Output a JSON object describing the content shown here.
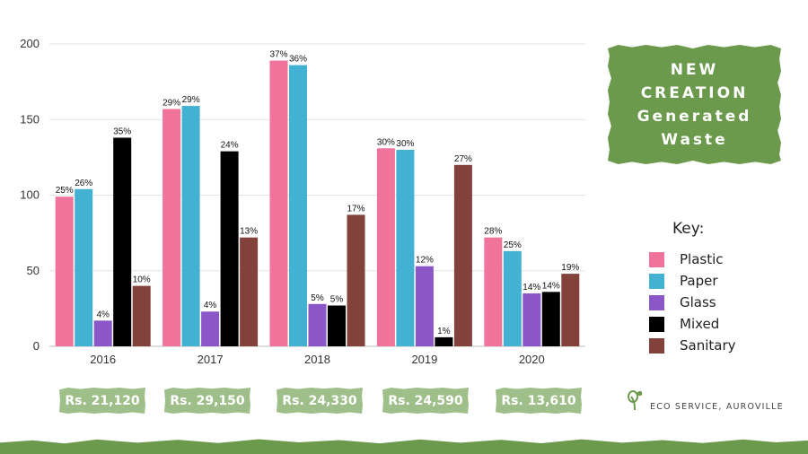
{
  "chart_data": {
    "type": "bar",
    "categories": [
      "2016",
      "2017",
      "2018",
      "2019",
      "2020"
    ],
    "ylim": [
      0,
      200
    ],
    "yticks": [
      0,
      50,
      100,
      150,
      200
    ],
    "grid": true,
    "series": [
      {
        "name": "Plastic",
        "color": "#f0739b",
        "values": [
          99,
          157,
          189,
          131,
          72
        ],
        "labels": [
          "25%",
          "29%",
          "37%",
          "30%",
          "28%"
        ]
      },
      {
        "name": "Paper",
        "color": "#43b1d2",
        "values": [
          104,
          159,
          186,
          130,
          63
        ],
        "labels": [
          "26%",
          "29%",
          "36%",
          "30%",
          "25%"
        ]
      },
      {
        "name": "Glass",
        "color": "#8a56c8",
        "values": [
          17,
          23,
          28,
          53,
          35
        ],
        "labels": [
          "4%",
          "4%",
          "5%",
          "12%",
          "14%"
        ]
      },
      {
        "name": "Mixed",
        "color": "#000000",
        "values": [
          138,
          129,
          27,
          6,
          36
        ],
        "labels": [
          "35%",
          "24%",
          "5%",
          "1%",
          "14%"
        ]
      },
      {
        "name": "Sanitary",
        "color": "#82413b",
        "values": [
          40,
          72,
          87,
          120,
          48
        ],
        "labels": [
          "10%",
          "13%",
          "17%",
          "27%",
          "19%"
        ]
      }
    ]
  },
  "title": {
    "line1": "NEW",
    "line2": "CREATION",
    "line3": "Generated",
    "line4": "Waste"
  },
  "key": {
    "title": "Key:",
    "items": [
      {
        "label": "Plastic",
        "color": "#f0739b"
      },
      {
        "label": "Paper",
        "color": "#43b1d2"
      },
      {
        "label": "Glass",
        "color": "#8a56c8"
      },
      {
        "label": "Mixed",
        "color": "#000000"
      },
      {
        "label": "Sanitary",
        "color": "#82413b"
      }
    ]
  },
  "costs": [
    "Rs. 21,120",
    "Rs. 29,150",
    "Rs. 24,330",
    "Rs. 24,590",
    "Rs. 13,610"
  ],
  "org": "ECO SERVICE, AUROVILLE",
  "colors": {
    "accent_green": "#6b9a4c",
    "badge_green": "#9fbf8a",
    "gridline": "#e3e3e3"
  }
}
